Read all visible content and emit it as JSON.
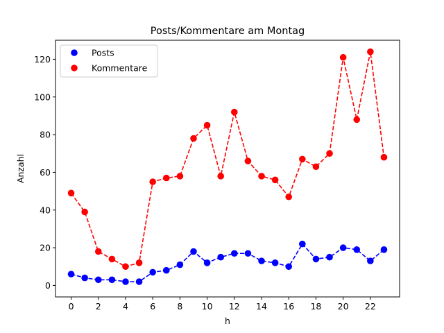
{
  "chart_data": {
    "type": "line",
    "title": "Posts/Kommentare am Montag",
    "xlabel": "h",
    "ylabel": "Anzahl",
    "x": [
      0,
      1,
      2,
      3,
      4,
      5,
      6,
      7,
      8,
      9,
      10,
      11,
      12,
      13,
      14,
      15,
      16,
      17,
      18,
      19,
      20,
      21,
      22,
      23
    ],
    "xlim": [
      -1.15,
      24.15
    ],
    "ylim": [
      -6.1,
      130.1
    ],
    "xticks": [
      "0",
      "2",
      "4",
      "6",
      "8",
      "10",
      "12",
      "14",
      "16",
      "18",
      "20",
      "22"
    ],
    "yticks": [
      "0",
      "20",
      "40",
      "60",
      "80",
      "100",
      "120"
    ],
    "grid": false,
    "legend_position": "top-left",
    "series": [
      {
        "name": "Posts",
        "color": "#0000ff",
        "line_style": "dashed",
        "marker": "circle",
        "values": [
          6,
          4,
          3,
          3,
          2,
          2,
          7,
          8,
          11,
          18,
          12,
          15,
          17,
          17,
          13,
          12,
          10,
          22,
          14,
          15,
          20,
          19,
          13,
          19
        ]
      },
      {
        "name": "Kommentare",
        "color": "#ff0000",
        "line_style": "dashed",
        "marker": "circle",
        "values": [
          49,
          39,
          18,
          14,
          10,
          12,
          55,
          57,
          58,
          78,
          85,
          58,
          92,
          66,
          58,
          56,
          47,
          67,
          63,
          70,
          121,
          88,
          124,
          68
        ]
      }
    ]
  }
}
